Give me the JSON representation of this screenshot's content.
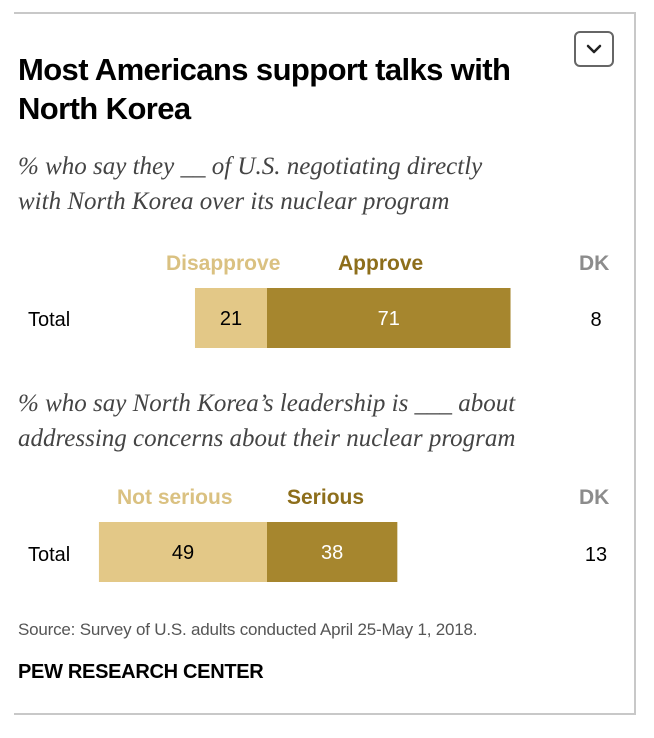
{
  "title": "Most Americans support talks with North Korea",
  "source": "Source: Survey of U.S. adults conducted April 25-May 1, 2018.",
  "organization": "PEW RESEARCH CENTER",
  "expand_icon": "chevron-down-icon",
  "colors": {
    "light_bar": "#E3C887",
    "dark_bar": "#A6862E",
    "light_label": "#DAC181",
    "dark_label": "#8D6E1B",
    "dk_label": "#8C8C8C"
  },
  "chart_data": [
    {
      "type": "bar",
      "stacked": true,
      "orientation": "horizontal",
      "subtitle": "% who say they __ of U.S. negotiating directly with North Korea over its nuclear program",
      "subtitle_lines": [
        "% who say they __ of U.S. negotiating directly",
        "with North Korea over its nuclear program"
      ],
      "categories": [
        "Total"
      ],
      "series": [
        {
          "name": "Disapprove",
          "values": [
            21
          ]
        },
        {
          "name": "Approve",
          "values": [
            71
          ]
        },
        {
          "name": "DK",
          "values": [
            8
          ]
        }
      ]
    },
    {
      "type": "bar",
      "stacked": true,
      "orientation": "horizontal",
      "subtitle": "% who say North Korea's leadership is ___ about addressing concerns about their nuclear program",
      "subtitle_lines": [
        "% who say North Korea’s leadership is ___ about",
        "addressing concerns about their nuclear program"
      ],
      "categories": [
        "Total"
      ],
      "series": [
        {
          "name": "Not serious",
          "values": [
            49
          ]
        },
        {
          "name": "Serious",
          "values": [
            38
          ]
        },
        {
          "name": "DK",
          "values": [
            13
          ]
        }
      ]
    }
  ]
}
